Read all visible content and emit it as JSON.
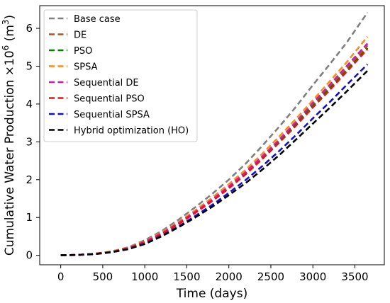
{
  "chart_data": {
    "type": "line",
    "xlabel": "Time (days)",
    "ylabel": "Cumulative Water Production ×10",
    "ylabel_exp": "6",
    "ylabel_unit_prefix": "  (m",
    "ylabel_unit_exp": "3",
    "ylabel_unit_suffix": ")",
    "xlim": [
      -250,
      3850
    ],
    "ylim": [
      -0.25,
      6.6
    ],
    "xticks": [
      0,
      500,
      1000,
      1500,
      2000,
      2500,
      3000,
      3500
    ],
    "yticks": [
      0,
      1,
      2,
      3,
      4,
      5,
      6
    ],
    "grid": false,
    "legend_position": "top-left",
    "x": [
      0,
      200,
      400,
      600,
      800,
      1000,
      1200,
      1400,
      1600,
      1800,
      2000,
      2200,
      2400,
      2600,
      2800,
      3000,
      3200,
      3400,
      3650
    ],
    "series": [
      {
        "name": "Base case",
        "color": "#808080",
        "values": [
          0,
          0.01,
          0.04,
          0.1,
          0.21,
          0.4,
          0.64,
          0.94,
          1.27,
          1.62,
          2.0,
          2.42,
          2.9,
          3.4,
          3.93,
          4.5,
          5.05,
          5.62,
          6.42
        ]
      },
      {
        "name": "DE",
        "color": "#b5501f",
        "values": [
          0,
          0.01,
          0.04,
          0.09,
          0.19,
          0.35,
          0.57,
          0.84,
          1.14,
          1.46,
          1.81,
          2.18,
          2.6,
          3.04,
          3.5,
          3.99,
          4.45,
          4.93,
          5.55
        ]
      },
      {
        "name": "PSO",
        "color": "#008000",
        "values": [
          0,
          0.01,
          0.04,
          0.09,
          0.19,
          0.35,
          0.57,
          0.84,
          1.14,
          1.45,
          1.8,
          2.17,
          2.58,
          3.02,
          3.47,
          3.95,
          4.41,
          4.88,
          5.48
        ]
      },
      {
        "name": "SPSA",
        "color": "#ff8c1a",
        "values": [
          0,
          0.01,
          0.04,
          0.1,
          0.2,
          0.37,
          0.6,
          0.88,
          1.19,
          1.52,
          1.88,
          2.26,
          2.69,
          3.14,
          3.61,
          4.1,
          4.6,
          5.1,
          5.78
        ]
      },
      {
        "name": "Sequential DE",
        "color": "#cc1fa8",
        "values": [
          0,
          0.01,
          0.04,
          0.09,
          0.19,
          0.36,
          0.58,
          0.85,
          1.15,
          1.47,
          1.82,
          2.2,
          2.62,
          3.06,
          3.53,
          4.03,
          4.51,
          5.0,
          5.6
        ]
      },
      {
        "name": "Sequential PSO",
        "color": "#ee1111",
        "values": [
          0,
          0.01,
          0.04,
          0.09,
          0.18,
          0.34,
          0.56,
          0.82,
          1.12,
          1.43,
          1.77,
          2.14,
          2.55,
          2.98,
          3.43,
          3.91,
          4.37,
          4.85,
          5.45
        ]
      },
      {
        "name": "Sequential SPSA",
        "color": "#1111cc",
        "values": [
          0,
          0.01,
          0.03,
          0.08,
          0.17,
          0.31,
          0.52,
          0.76,
          1.04,
          1.33,
          1.65,
          1.99,
          2.36,
          2.76,
          3.18,
          3.62,
          4.05,
          4.5,
          5.05
        ]
      },
      {
        "name": "Hybrid optimization (HO)",
        "color": "#000000",
        "values": [
          0,
          0.01,
          0.03,
          0.08,
          0.16,
          0.3,
          0.5,
          0.74,
          1.0,
          1.28,
          1.59,
          1.91,
          2.27,
          2.65,
          3.06,
          3.48,
          3.9,
          4.33,
          4.88
        ]
      }
    ]
  }
}
